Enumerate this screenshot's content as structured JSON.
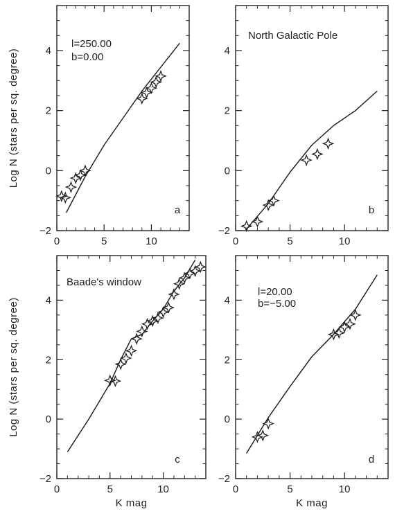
{
  "chart_data": [
    {
      "panel": "a",
      "type": "line+scatter",
      "annotation_lines": [
        "l=250.00",
        "b=0.00"
      ],
      "panel_letter": "a",
      "xlabel": "",
      "ylabel": "Log N (stars per sq. degree)",
      "xlim": [
        0,
        14
      ],
      "ylim": [
        -2,
        5.5
      ],
      "xticks": [
        0,
        5,
        10
      ],
      "yticks": [
        -2,
        0,
        2,
        4
      ],
      "model_line": {
        "x": [
          1,
          3,
          5,
          7,
          9,
          11,
          13
        ],
        "y": [
          -1.4,
          -0.2,
          0.85,
          1.75,
          2.65,
          3.45,
          4.25
        ]
      },
      "observed": {
        "x": [
          0.5,
          0.9,
          1.5,
          2.0,
          2.5,
          3.0,
          9.0,
          9.5,
          10.0,
          10.5,
          11.0
        ],
        "y": [
          -0.85,
          -0.9,
          -0.55,
          -0.25,
          -0.15,
          0.0,
          2.4,
          2.6,
          2.75,
          2.95,
          3.15
        ]
      }
    },
    {
      "panel": "b",
      "type": "line+scatter",
      "annotation_lines": [
        "North Galactic Pole"
      ],
      "panel_letter": "b",
      "xlabel": "",
      "ylabel": "",
      "xlim": [
        0,
        14
      ],
      "ylim": [
        -2,
        5.5
      ],
      "xticks": [
        0,
        5,
        10
      ],
      "yticks": [
        -2,
        0,
        2,
        4
      ],
      "model_line": {
        "x": [
          1,
          3,
          5,
          7,
          9,
          11,
          13
        ],
        "y": [
          -1.95,
          -1.1,
          -0.05,
          0.85,
          1.5,
          2.0,
          2.65
        ]
      },
      "observed": {
        "x": [
          1.0,
          2.0,
          3.0,
          3.5,
          6.5,
          7.5,
          8.5
        ],
        "y": [
          -1.85,
          -1.7,
          -1.15,
          -1.0,
          0.35,
          0.55,
          0.9
        ]
      }
    },
    {
      "panel": "c",
      "type": "line+scatter",
      "annotation_lines": [
        "Baade's window"
      ],
      "panel_letter": "c",
      "xlabel": "K mag",
      "ylabel": "Log N (stars per sq. degree)",
      "xlim": [
        0,
        14
      ],
      "ylim": [
        -2,
        5.5
      ],
      "xticks": [
        0,
        5,
        10
      ],
      "yticks": [
        -2,
        0,
        2,
        4
      ],
      "model_line": {
        "x": [
          1,
          3,
          5,
          6,
          7,
          8,
          9,
          10,
          11,
          12,
          13
        ],
        "y": [
          -1.1,
          0.0,
          1.2,
          2.0,
          2.7,
          2.85,
          3.3,
          3.7,
          4.3,
          4.75,
          5.35
        ]
      },
      "observed": {
        "x": [
          5.0,
          5.5,
          6.0,
          6.5,
          7.0,
          7.5,
          8.0,
          8.5,
          9.0,
          9.5,
          10.0,
          10.5,
          11.0,
          11.5,
          12.0,
          12.5,
          13.0,
          13.5
        ],
        "y": [
          1.3,
          1.28,
          1.85,
          2.05,
          2.3,
          2.7,
          2.95,
          3.2,
          3.3,
          3.4,
          3.6,
          3.75,
          4.2,
          4.55,
          4.75,
          4.9,
          4.98,
          5.12
        ]
      }
    },
    {
      "panel": "d",
      "type": "line+scatter",
      "annotation_lines": [
        "l=20.00",
        "b=−5.00"
      ],
      "panel_letter": "d",
      "xlabel": "K mag",
      "ylabel": "",
      "xlim": [
        0,
        14
      ],
      "ylim": [
        -2,
        5.5
      ],
      "xticks": [
        0,
        5,
        10
      ],
      "yticks": [
        -2,
        0,
        2,
        4
      ],
      "model_line": {
        "x": [
          1,
          3,
          5,
          7,
          9,
          11,
          13
        ],
        "y": [
          -1.15,
          0.05,
          1.1,
          2.1,
          2.85,
          3.7,
          4.85
        ]
      },
      "observed": {
        "x": [
          2.0,
          2.5,
          3.0,
          9.0,
          9.5,
          10.0,
          10.5,
          11.0
        ],
        "y": [
          -0.6,
          -0.55,
          -0.15,
          2.85,
          2.9,
          3.1,
          3.2,
          3.5
        ]
      }
    }
  ]
}
